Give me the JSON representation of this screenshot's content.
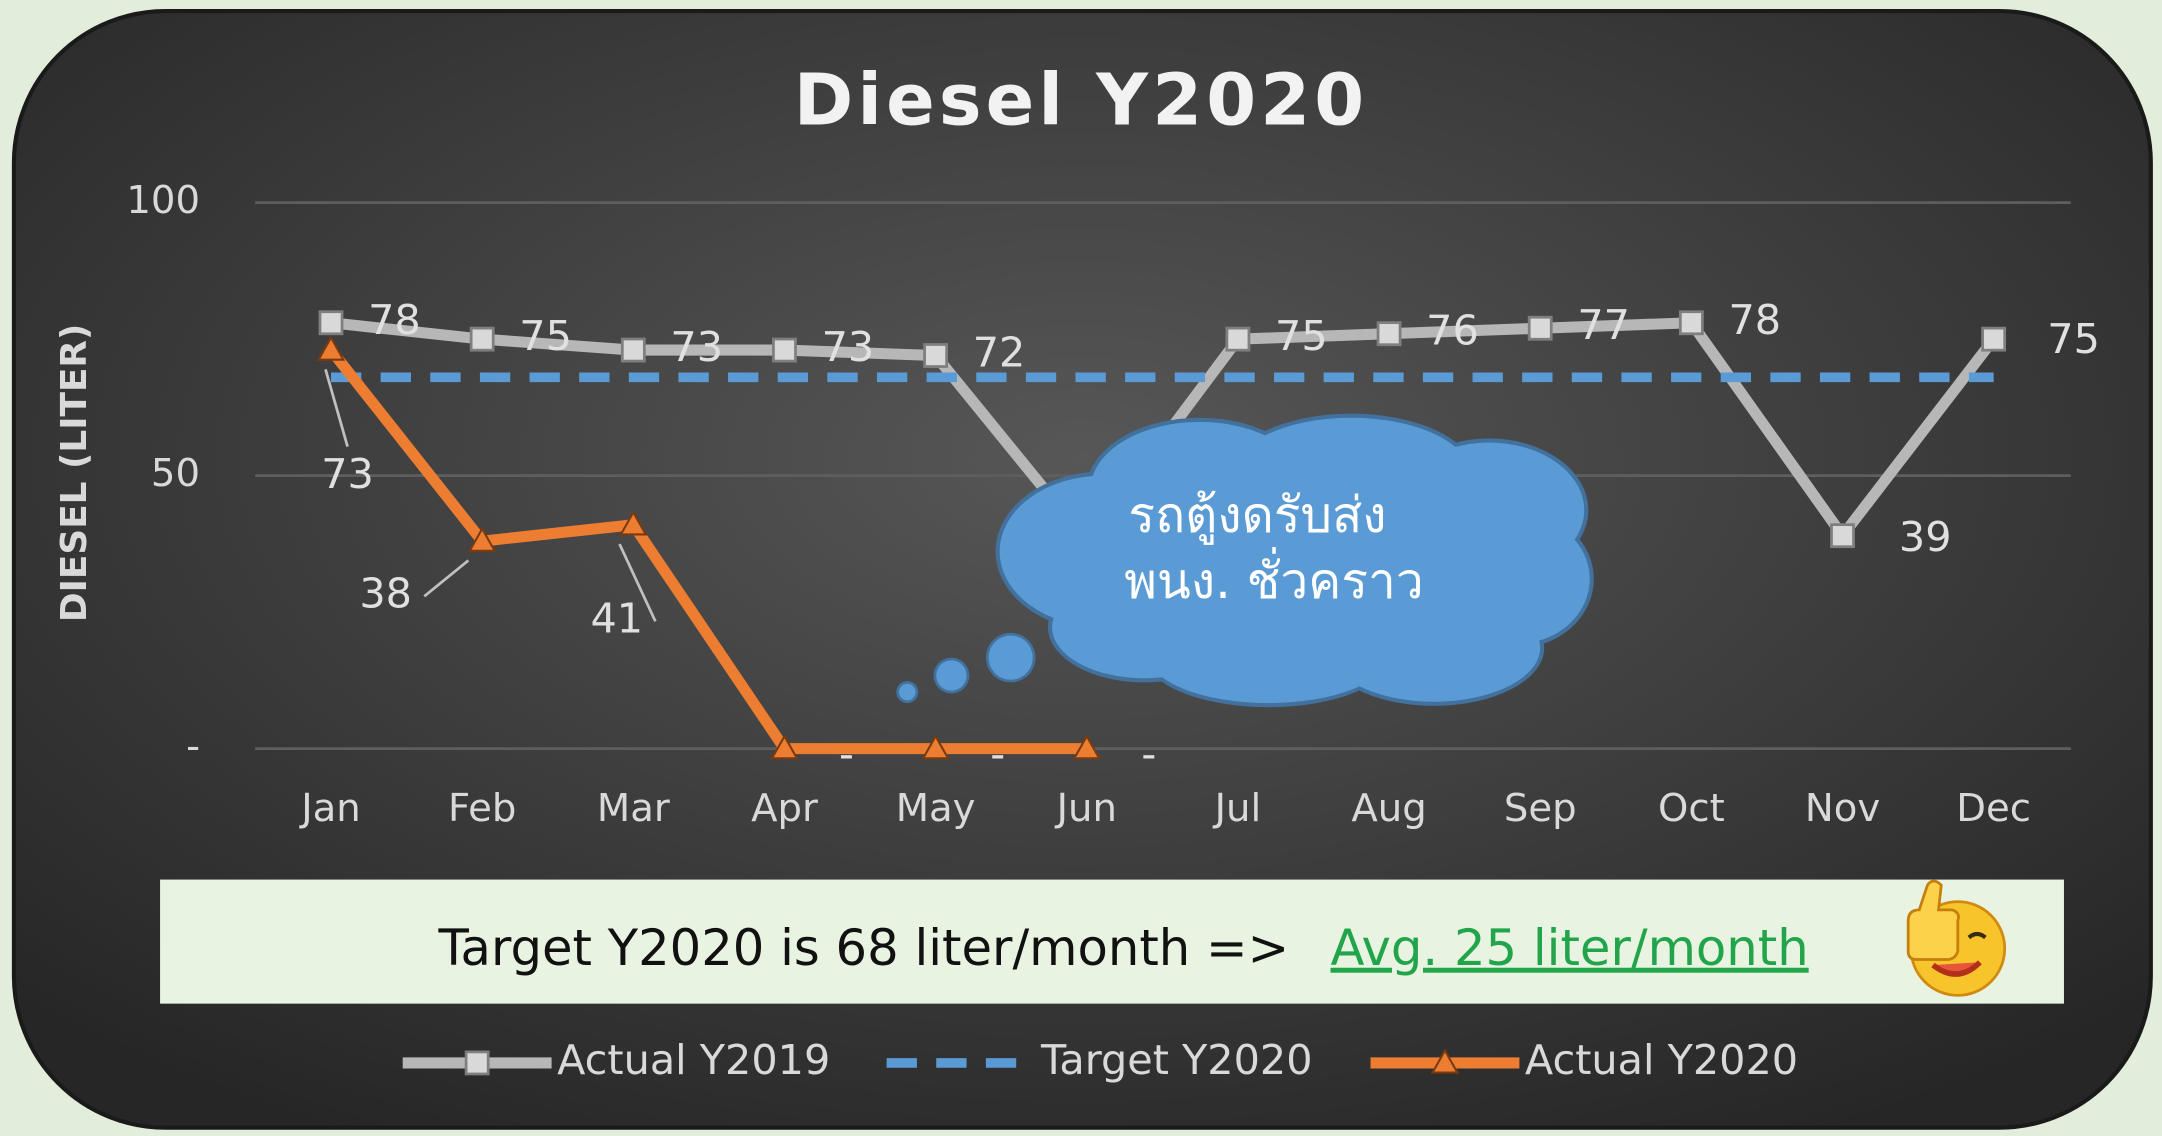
{
  "chart_data": {
    "type": "line",
    "title": "Diesel Y2020",
    "y_label": "DIESEL (LITER)",
    "categories": [
      "Jan",
      "Feb",
      "Mar",
      "Apr",
      "May",
      "Jun",
      "Jul",
      "Aug",
      "Sep",
      "Oct",
      "Nov",
      "Dec"
    ],
    "series": [
      {
        "name": "Actual Y2019",
        "color": "#b7b7b7",
        "marker": "square",
        "line_style": "solid",
        "values": [
          78,
          75,
          73,
          73,
          72,
          38,
          75,
          76,
          77,
          78,
          39,
          75
        ],
        "value_labels": [
          "78",
          "75",
          "73",
          "73",
          "72",
          null,
          "75",
          "76",
          "77",
          "78",
          "39",
          "75"
        ]
      },
      {
        "name": "Target Y2020",
        "color": "#5b9bd5",
        "marker": null,
        "line_style": "dashed",
        "values": [
          68,
          68,
          68,
          68,
          68,
          68,
          68,
          68,
          68,
          68,
          68,
          68
        ]
      },
      {
        "name": "Actual Y2020",
        "color": "#ed7d31",
        "marker": "triangle",
        "line_style": "solid",
        "values": [
          73,
          38,
          41,
          0,
          0,
          0,
          null,
          null,
          null,
          null,
          null,
          null
        ],
        "value_labels": [
          "73",
          "38",
          "41",
          "-",
          "-",
          "-",
          null,
          null,
          null,
          null,
          null,
          null
        ]
      }
    ],
    "ylim": [
      0,
      100
    ],
    "yticks": [
      {
        "value": 0,
        "label": "-"
      },
      50,
      100
    ],
    "grid": true,
    "legend": "bottom",
    "annotation": [
      "รถตู้งดรับส่ง",
      "พนง. ชั่วคราว"
    ],
    "banner": {
      "text": "Target Y2020 is 68 liter/month =>",
      "highlight": "Avg. 25 liter/month"
    }
  }
}
